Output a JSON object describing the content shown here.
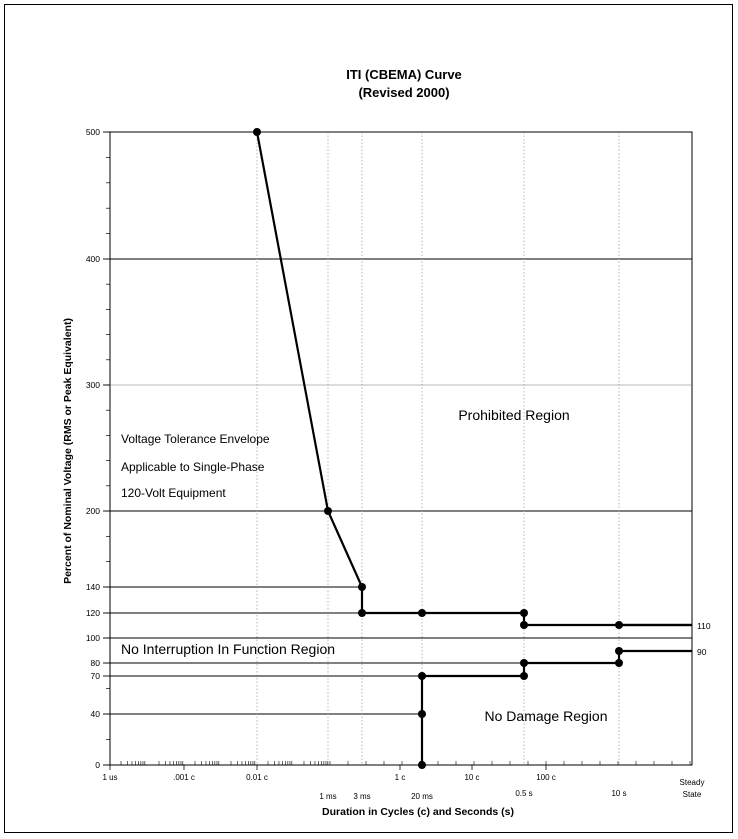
{
  "chart_data": {
    "type": "line",
    "title": "ITI (CBEMA) Curve",
    "subtitle": "(Revised 2000)",
    "xlabel": "Duration in Cycles (c) and Seconds (s)",
    "ylabel": "Percent of Nominal Voltage (RMS or Peak Equivalent)",
    "x_scale": "log",
    "xlim_cycles": [
      6e-05,
      10000
    ],
    "y_tick_labels": [
      "0",
      "40",
      "70",
      "80",
      "90",
      "100",
      "110",
      "120",
      "140",
      "200",
      "300",
      "400",
      "500"
    ],
    "x_tick_labels_top": [
      "1 us",
      ".001 c",
      "0.01 c",
      "1 ms",
      "3 ms",
      "1 c",
      "20 ms",
      "10 c",
      "0.5 s",
      "100 c",
      "10 s",
      "Steady State"
    ],
    "right_labels": [
      "110",
      "90"
    ],
    "series": [
      {
        "role": "upper-envelope",
        "points": [
          [
            0.01,
            500
          ],
          [
            0.06,
            200
          ],
          [
            0.18,
            140
          ],
          [
            0.18,
            120
          ],
          [
            1.2,
            120
          ],
          [
            30,
            120
          ],
          [
            30,
            110
          ],
          [
            600,
            110
          ],
          [
            10000,
            110
          ]
        ]
      },
      {
        "role": "lower-envelope",
        "points": [
          [
            1.2,
            0
          ],
          [
            1.2,
            40
          ],
          [
            1.2,
            70
          ],
          [
            30,
            70
          ],
          [
            30,
            80
          ],
          [
            600,
            80
          ],
          [
            600,
            90
          ],
          [
            10000,
            90
          ]
        ]
      }
    ],
    "regions": {
      "prohibited": "Prohibited Region",
      "no_interruption": "No Interruption In Function Region",
      "no_damage": "No Damage Region"
    },
    "envelope_note": [
      "Voltage Tolerance Envelope",
      "Applicable to Single-Phase",
      "120-Volt Equipment"
    ],
    "grid": true
  }
}
